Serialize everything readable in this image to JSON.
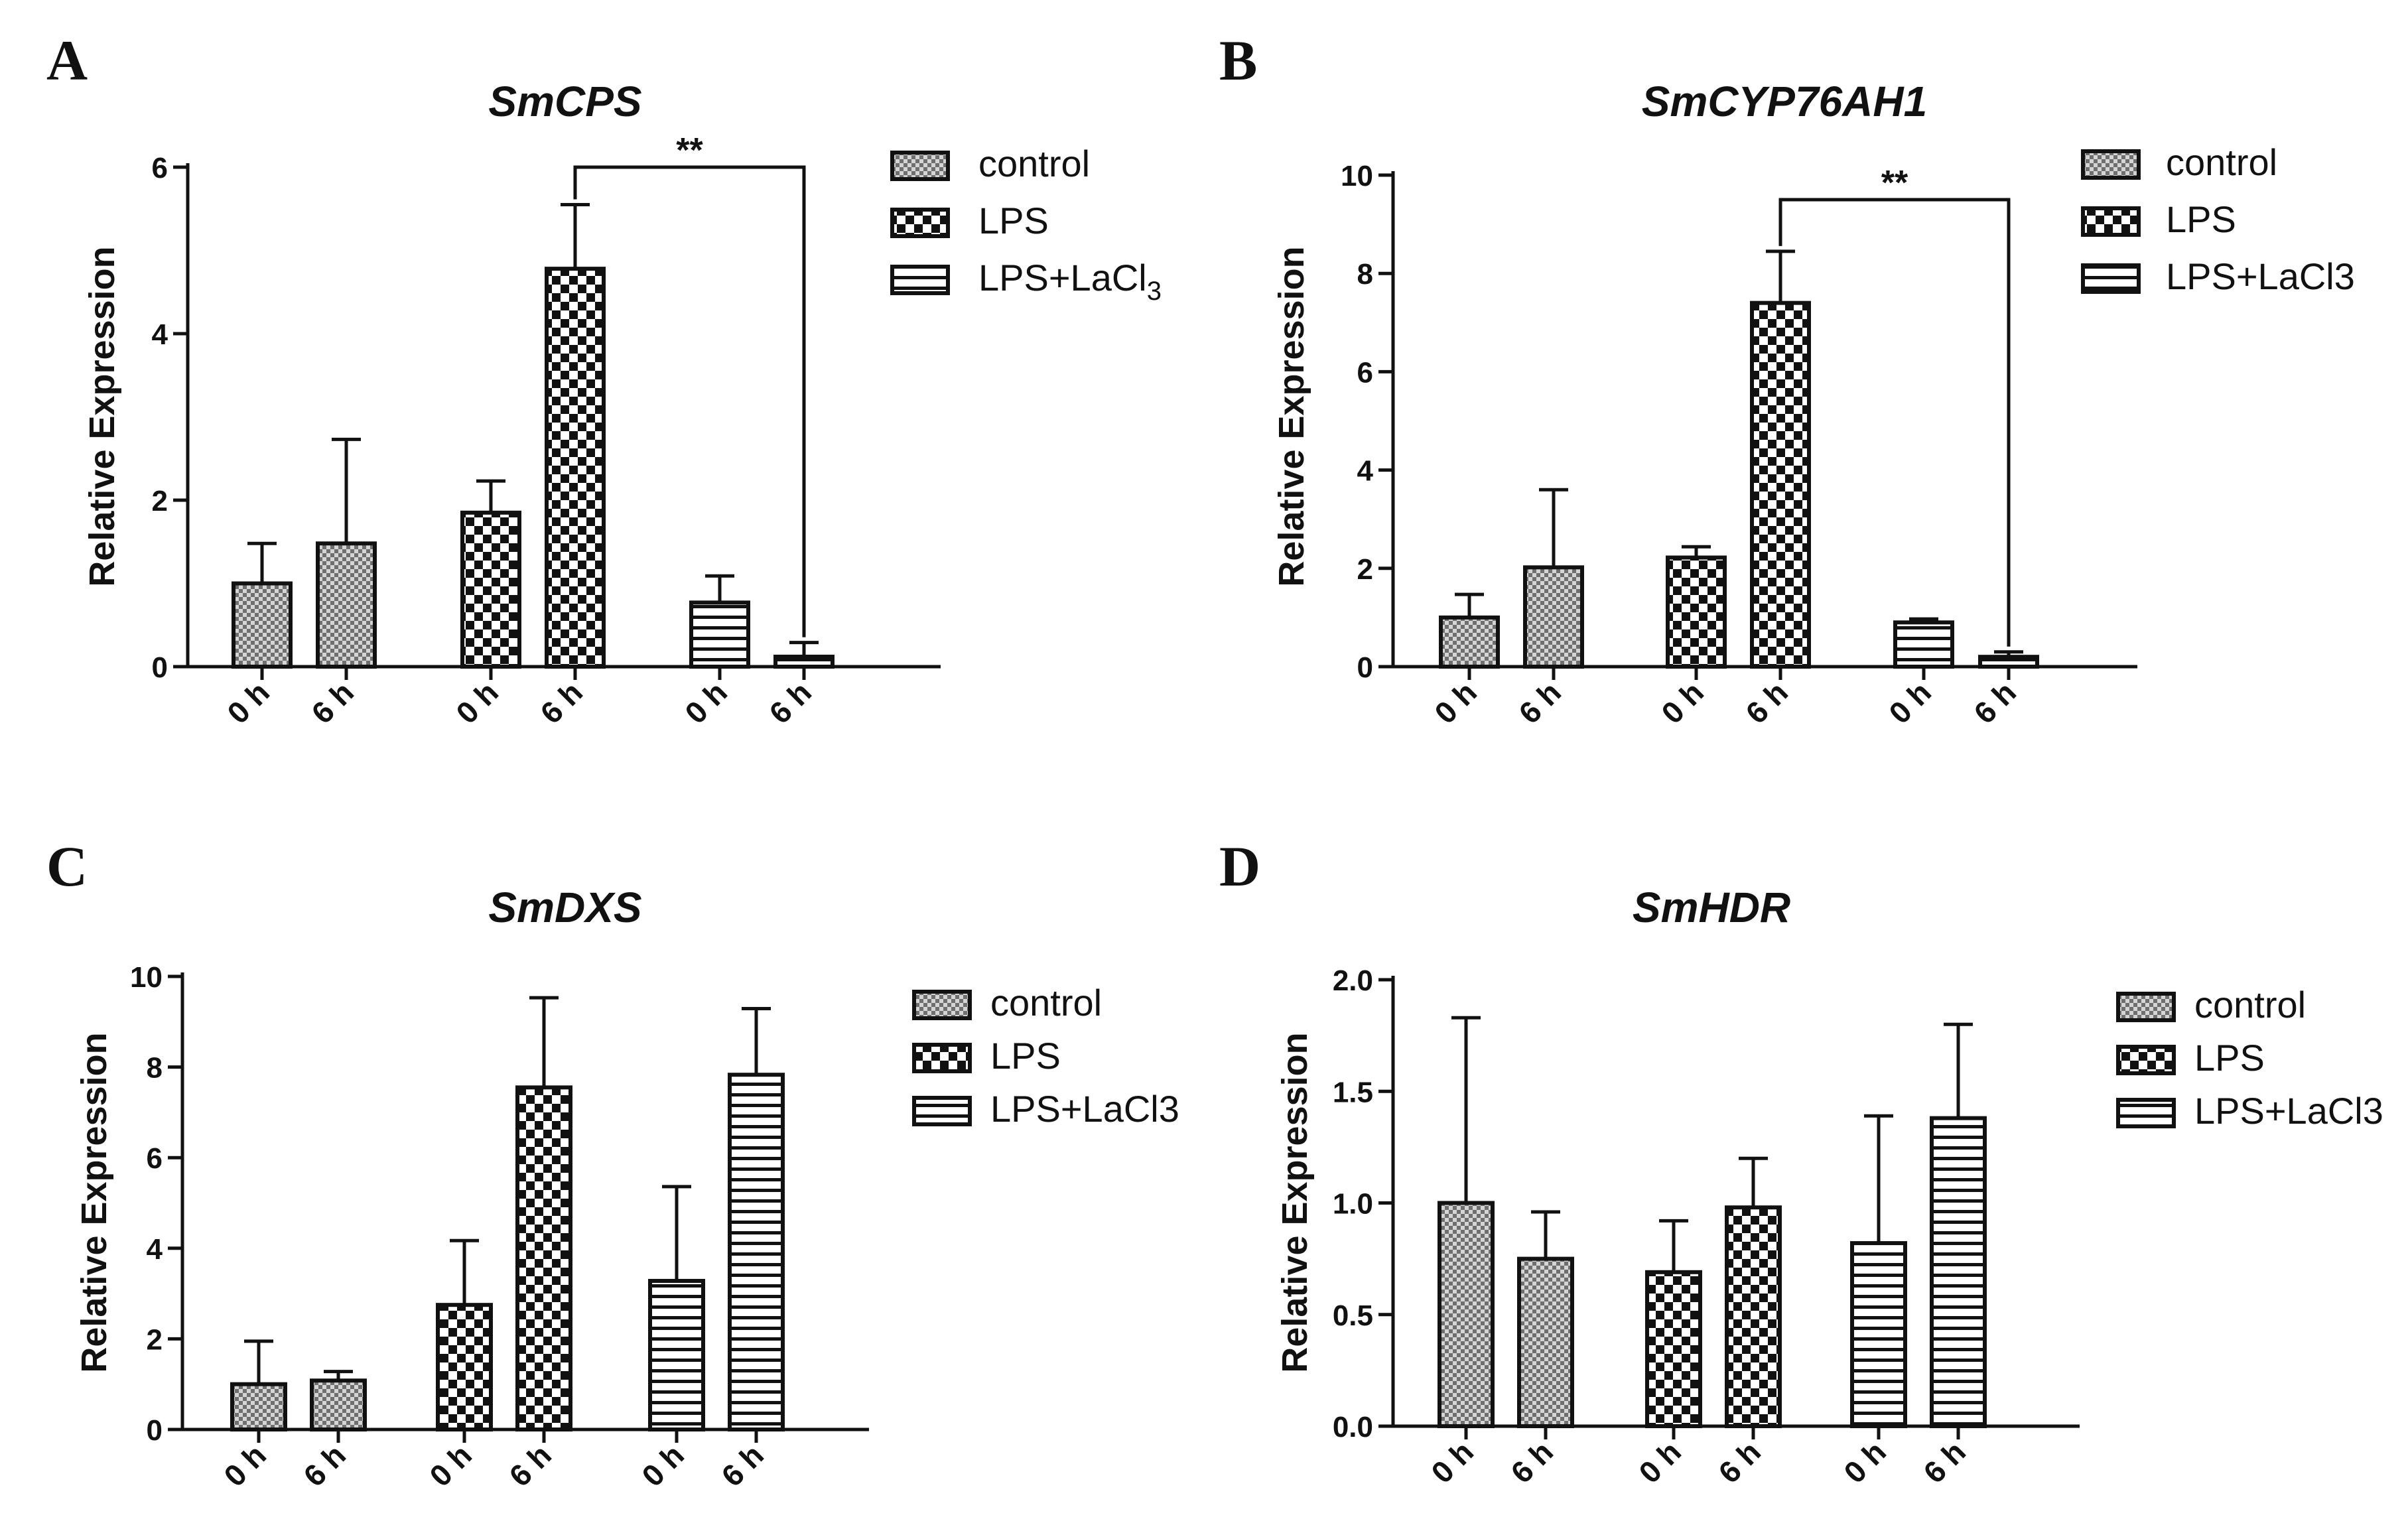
{
  "figure": {
    "panels": [
      "A",
      "B",
      "C",
      "D"
    ]
  },
  "chart_data": [
    {
      "panel": "A",
      "type": "bar",
      "title": "SmCPS",
      "xlabel": "",
      "ylabel": "Relative Expression",
      "ylim": [
        0,
        6
      ],
      "yticks": [
        0,
        2,
        4,
        6
      ],
      "groups": [
        "control",
        "LPS",
        "LPS+LaCl3"
      ],
      "categories": [
        "0 h",
        "6 h"
      ],
      "series": [
        {
          "name": "control",
          "pattern": "control",
          "values": [
            1.0,
            1.48
          ],
          "errors": [
            0.48,
            1.25
          ]
        },
        {
          "name": "LPS",
          "pattern": "lps",
          "values": [
            1.85,
            4.78
          ],
          "errors": [
            0.38,
            0.77
          ]
        },
        {
          "name": "LPS+LaCl3",
          "pattern": "lacl3",
          "values": [
            0.77,
            0.12
          ],
          "errors": [
            0.32,
            0.17
          ]
        }
      ],
      "legend": {
        "position": "top-right",
        "items": [
          {
            "label": "control",
            "pattern": "control"
          },
          {
            "label": "LPS",
            "pattern": "lps"
          },
          {
            "label": "LPS+LaCl",
            "subscript": "3",
            "pattern": "lacl3"
          }
        ]
      },
      "significance": {
        "label": "**",
        "from": [
          1,
          1
        ],
        "to": [
          2,
          1
        ],
        "y": 6.0
      }
    },
    {
      "panel": "B",
      "type": "bar",
      "title": "SmCYP76AH1",
      "xlabel": "",
      "ylabel": "Relative Expression",
      "ylim": [
        0,
        10
      ],
      "yticks": [
        0,
        2,
        4,
        6,
        8,
        10
      ],
      "groups": [
        "control",
        "LPS",
        "LPS+LaCl3"
      ],
      "categories": [
        "0 h",
        "6 h"
      ],
      "series": [
        {
          "name": "control",
          "pattern": "control",
          "values": [
            1.0,
            2.02
          ],
          "errors": [
            0.47,
            1.58
          ]
        },
        {
          "name": "LPS",
          "pattern": "lps",
          "values": [
            2.22,
            7.4
          ],
          "errors": [
            0.22,
            1.05
          ]
        },
        {
          "name": "LPS+LaCl3",
          "pattern": "lacl3",
          "values": [
            0.9,
            0.2
          ],
          "errors": [
            0.07,
            0.1
          ]
        }
      ],
      "legend": {
        "position": "top-right",
        "items": [
          {
            "label": "control",
            "pattern": "control"
          },
          {
            "label": "LPS",
            "pattern": "lps"
          },
          {
            "label": "LPS+LaCl3",
            "pattern": "lacl3"
          }
        ]
      },
      "significance": {
        "label": "**",
        "from": [
          1,
          1
        ],
        "to": [
          2,
          1
        ],
        "y": 9.5
      }
    },
    {
      "panel": "C",
      "type": "bar",
      "title": "SmDXS",
      "xlabel": "",
      "ylabel": "Relative Expression",
      "ylim": [
        0,
        10
      ],
      "yticks": [
        0,
        2,
        4,
        6,
        8,
        10
      ],
      "groups": [
        "control",
        "LPS",
        "LPS+LaCl3"
      ],
      "categories": [
        "0 h",
        "6 h"
      ],
      "series": [
        {
          "name": "control",
          "pattern": "control",
          "values": [
            1.0,
            1.08
          ],
          "errors": [
            0.95,
            0.2
          ]
        },
        {
          "name": "LPS",
          "pattern": "lps",
          "values": [
            2.75,
            7.55
          ],
          "errors": [
            1.42,
            1.98
          ]
        },
        {
          "name": "LPS+LaCl3",
          "pattern": "lacl3",
          "values": [
            3.28,
            7.83
          ],
          "errors": [
            2.08,
            1.46
          ]
        }
      ],
      "legend": {
        "position": "top-right",
        "items": [
          {
            "label": "control",
            "pattern": "control"
          },
          {
            "label": "LPS",
            "pattern": "lps"
          },
          {
            "label": "LPS+LaCl3",
            "pattern": "lacl3"
          }
        ]
      },
      "significance": null
    },
    {
      "panel": "D",
      "type": "bar",
      "title": "SmHDR",
      "xlabel": "",
      "ylabel": "Relative Expression",
      "ylim": [
        0,
        2.0
      ],
      "yticks": [
        0.0,
        0.5,
        1.0,
        1.5,
        2.0
      ],
      "yticks_text": [
        "0.0",
        "0.5",
        "1.0",
        "1.5",
        "2.0"
      ],
      "groups": [
        "control",
        "LPS",
        "LPS+LaCl3"
      ],
      "categories": [
        "0 h",
        "6 h"
      ],
      "series": [
        {
          "name": "control",
          "pattern": "control",
          "values": [
            1.0,
            0.75
          ],
          "errors": [
            0.83,
            0.21
          ]
        },
        {
          "name": "LPS",
          "pattern": "lps",
          "values": [
            0.69,
            0.98
          ],
          "errors": [
            0.23,
            0.22
          ]
        },
        {
          "name": "LPS+LaCl3",
          "pattern": "lacl3",
          "values": [
            0.82,
            1.38
          ],
          "errors": [
            0.57,
            0.42
          ]
        }
      ],
      "legend": {
        "position": "top-right",
        "items": [
          {
            "label": "control",
            "pattern": "control"
          },
          {
            "label": "LPS",
            "pattern": "lps"
          },
          {
            "label": "LPS+LaCl3",
            "pattern": "lacl3"
          }
        ]
      },
      "significance": null
    }
  ]
}
